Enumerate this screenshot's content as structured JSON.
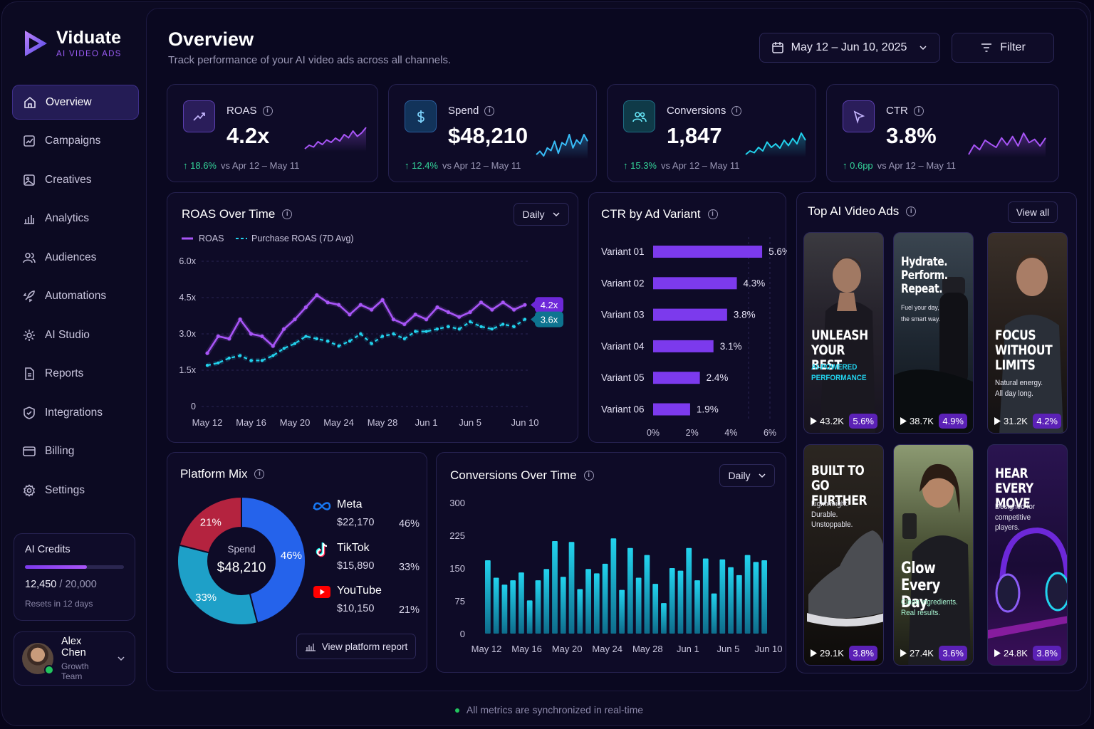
{
  "brand": {
    "name": "Viduate",
    "tagline": "AI VIDEO ADS"
  },
  "sidebar": {
    "items": [
      {
        "label": "Overview",
        "icon": "home-icon"
      },
      {
        "label": "Campaigns",
        "icon": "campaign-icon"
      },
      {
        "label": "Creatives",
        "icon": "image-icon"
      },
      {
        "label": "Analytics",
        "icon": "bar-chart-icon"
      },
      {
        "label": "Audiences",
        "icon": "users-icon"
      },
      {
        "label": "Automations",
        "icon": "rocket-icon"
      },
      {
        "label": "AI Studio",
        "icon": "gear-ai-icon"
      },
      {
        "label": "Reports",
        "icon": "document-icon"
      },
      {
        "label": "Integrations",
        "icon": "puzzle-icon"
      },
      {
        "label": "Billing",
        "icon": "card-icon"
      },
      {
        "label": "Settings",
        "icon": "settings-icon"
      }
    ],
    "credits": {
      "title": "AI Credits",
      "used": "12,450",
      "total": "/ 20,000",
      "fraction": 0.6225,
      "resets": "Resets in 12 days"
    },
    "user": {
      "name": "Alex Chen",
      "role": "Growth Team"
    }
  },
  "header": {
    "title": "Overview",
    "subtitle": "Track performance of your AI video ads across all channels.",
    "date_range": "May 12 – Jun 10, 2025",
    "filter_label": "Filter"
  },
  "kpis": [
    {
      "label": "ROAS",
      "value": "4.2x",
      "change": "18.6%",
      "compare": "vs Apr 12 – May 11",
      "color": "#a855f7",
      "spark": [
        3,
        4,
        3.5,
        5,
        4.2,
        5.5,
        4.8,
        6,
        5.2,
        7,
        6.1,
        8,
        6.5,
        7.5,
        9
      ]
    },
    {
      "label": "Spend",
      "value": "$48,210",
      "change": "12.4%",
      "compare": "vs Apr 12 – May 11",
      "color": "#38bdf8",
      "spark": [
        3,
        3.5,
        2.8,
        4,
        3.6,
        5,
        3.2,
        4.8,
        4.4,
        6,
        4,
        5.2,
        4.6,
        6,
        5
      ]
    },
    {
      "label": "Conversions",
      "value": "1,847",
      "change": "15.3%",
      "compare": "vs Apr 12 – May 11",
      "color": "#22d3ee",
      "spark": [
        2,
        3,
        2.5,
        4,
        3,
        5.5,
        4,
        5,
        3.8,
        6,
        4.5,
        6.5,
        5,
        8,
        6
      ]
    },
    {
      "label": "CTR",
      "value": "3.8%",
      "change": "0.6pp",
      "compare": "vs Apr 12 – May 11",
      "color": "#a855f7",
      "spark": [
        3,
        5,
        4,
        6,
        5.2,
        4.5,
        6.5,
        5,
        6.8,
        4.8,
        7.5,
        5.5,
        6.2,
        4.8,
        6.5
      ]
    }
  ],
  "roas_chart": {
    "title": "ROAS Over Time",
    "granularity": "Daily",
    "legend": [
      "ROAS",
      "Purchase ROAS (7D Avg)"
    ],
    "x_ticks": [
      "May 12",
      "May 16",
      "May 20",
      "May 24",
      "May 28",
      "Jun 1",
      "Jun 5",
      "Jun 10"
    ],
    "y_ticks": [
      "0",
      "1.5x",
      "3.0x",
      "4.5x",
      "6.0x"
    ],
    "end_labels": [
      "4.2x",
      "3.6x"
    ]
  },
  "ctr_chart": {
    "title": "CTR by Ad Variant",
    "x_ticks": [
      "0%",
      "2%",
      "4%",
      "6%"
    ],
    "value_labels": [
      "5.6%",
      "4.3%",
      "3.8%",
      "3.1%",
      "2.4%",
      "1.9%"
    ]
  },
  "platform_mix": {
    "title": "Platform Mix",
    "center_label": "Spend",
    "center_value": "$48,210",
    "platforms": [
      {
        "name": "Meta",
        "spend": "$22,170",
        "share": "46%",
        "color": "#2563eb"
      },
      {
        "name": "TikTok",
        "spend": "$15,890",
        "share": "33%",
        "color": "#1ea0c8"
      },
      {
        "name": "YouTube",
        "spend": "$10,150",
        "share": "21%",
        "color": "#b4233f"
      }
    ],
    "report_button": "View platform report"
  },
  "conversions_chart": {
    "title": "Conversions Over Time",
    "granularity": "Daily",
    "y_ticks": [
      "0",
      "75",
      "150",
      "225",
      "300"
    ],
    "x_ticks": [
      "May 12",
      "May 16",
      "May 20",
      "May 24",
      "May 28",
      "Jun 1",
      "Jun 5",
      "Jun 10"
    ]
  },
  "top_ads": {
    "title": "Top AI Video Ads",
    "view_all": "View all",
    "ads": [
      {
        "headline": [
          "UNLEASH",
          "YOUR BEST"
        ],
        "sub": [
          "AI-POWERED",
          "PERFORMANCE"
        ],
        "views": "43.2K",
        "ctr": "5.6%"
      },
      {
        "headline": [
          "Hydrate.",
          "Perform.",
          "Repeat."
        ],
        "sub": [
          "Fuel your day,",
          "the smart way."
        ],
        "views": "38.7K",
        "ctr": "4.9%"
      },
      {
        "headline": [
          "FOCUS",
          "WITHOUT",
          "LIMITS"
        ],
        "sub": [
          "Natural energy.",
          "All day long."
        ],
        "views": "31.2K",
        "ctr": "4.2%"
      },
      {
        "headline": [
          "BUILT TO",
          "GO FURTHER"
        ],
        "sub": [
          "Lightweight.",
          "Durable.",
          "Unstoppable."
        ],
        "views": "29.1K",
        "ctr": "3.8%"
      },
      {
        "headline": [
          "Glow",
          "Every Day"
        ],
        "sub": [
          "Clean ingredients.",
          "Real results."
        ],
        "views": "27.4K",
        "ctr": "3.6%"
      },
      {
        "headline": [
          "HEAR EVERY",
          "MOVE"
        ],
        "sub": [
          "Designed for",
          "competitive",
          "players."
        ],
        "views": "24.8K",
        "ctr": "3.8%"
      }
    ]
  },
  "footer": {
    "status": "All metrics are synchronized in real-time"
  },
  "chart_data": [
    {
      "type": "line",
      "title": "ROAS Over Time",
      "ylim": [
        0,
        6.0
      ],
      "x": [
        "May 12",
        "May 13",
        "May 14",
        "May 15",
        "May 16",
        "May 17",
        "May 18",
        "May 19",
        "May 20",
        "May 21",
        "May 22",
        "May 23",
        "May 24",
        "May 25",
        "May 26",
        "May 27",
        "May 28",
        "May 29",
        "May 30",
        "May 31",
        "Jun 1",
        "Jun 2",
        "Jun 3",
        "Jun 4",
        "Jun 5",
        "Jun 6",
        "Jun 7",
        "Jun 8",
        "Jun 9",
        "Jun 10"
      ],
      "series": [
        {
          "name": "ROAS",
          "color": "#a855f7",
          "values": [
            2.2,
            2.9,
            2.8,
            3.6,
            3.0,
            2.9,
            2.5,
            3.2,
            3.6,
            4.1,
            4.6,
            4.3,
            4.2,
            3.8,
            4.2,
            4.0,
            4.4,
            3.6,
            3.4,
            3.8,
            3.6,
            4.1,
            3.9,
            3.7,
            3.9,
            4.3,
            4.0,
            4.3,
            4.0,
            4.2
          ]
        },
        {
          "name": "Purchase ROAS (7D Avg)",
          "color": "#22d3ee",
          "values": [
            1.7,
            1.8,
            2.0,
            2.1,
            1.9,
            1.9,
            2.1,
            2.4,
            2.6,
            2.9,
            2.8,
            2.7,
            2.5,
            2.7,
            3.0,
            2.6,
            2.9,
            3.0,
            2.8,
            3.1,
            3.1,
            3.2,
            3.3,
            3.2,
            3.5,
            3.3,
            3.2,
            3.4,
            3.3,
            3.6
          ]
        }
      ]
    },
    {
      "type": "bar",
      "title": "CTR by Ad Variant",
      "orientation": "horizontal",
      "categories": [
        "Variant 01",
        "Variant 02",
        "Variant 03",
        "Variant 04",
        "Variant 05",
        "Variant 06"
      ],
      "values": [
        5.6,
        4.3,
        3.8,
        3.1,
        2.4,
        1.9
      ],
      "xlim": [
        0,
        6
      ],
      "color": "#7c3aed"
    },
    {
      "type": "pie",
      "title": "Platform Mix",
      "categories": [
        "Meta",
        "TikTok",
        "YouTube"
      ],
      "values": [
        46,
        33,
        21
      ]
    },
    {
      "type": "bar",
      "title": "Conversions Over Time",
      "ylim": [
        0,
        300
      ],
      "values": [
        168,
        128,
        112,
        122,
        140,
        76,
        122,
        148,
        212,
        130,
        210,
        102,
        148,
        138,
        160,
        218,
        100,
        196,
        128,
        180,
        114,
        70,
        150,
        144,
        196,
        122,
        172,
        92,
        170,
        152,
        134,
        180,
        164,
        168
      ],
      "color": "#22d3ee"
    }
  ]
}
